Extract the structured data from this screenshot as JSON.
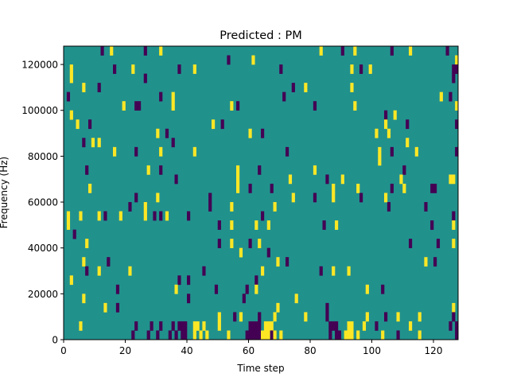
{
  "chart_data": {
    "type": "heatmap",
    "title": "Predicted : PM",
    "xlabel": "Time step",
    "ylabel": "Frequency (Hz)",
    "xlim": [
      0,
      128
    ],
    "ylim": [
      0,
      128000
    ],
    "n_cols": 128,
    "n_rows": 32,
    "row_height_hz": 4000,
    "xticks": [
      0,
      20,
      40,
      60,
      80,
      100,
      120
    ],
    "xtick_labels": [
      "0",
      "20",
      "40",
      "60",
      "80",
      "100",
      "120"
    ],
    "yticks": [
      0,
      20000,
      40000,
      60000,
      80000,
      100000,
      120000
    ],
    "ytick_labels": [
      "0",
      "20000",
      "40000",
      "60000",
      "80000",
      "100000",
      "120000"
    ],
    "background_value": 0,
    "colors": {
      "low": "#440154",
      "mid": "#21918c",
      "high": "#fde725"
    },
    "cells_note": "each cell: [time step, frequency row, value] with -1 low, 1 high",
    "cells": [
      [
        12,
        31,
        -1
      ],
      [
        15,
        31,
        1
      ],
      [
        26,
        31,
        -1
      ],
      [
        31,
        31,
        1
      ],
      [
        83,
        31,
        1
      ],
      [
        90,
        31,
        -1
      ],
      [
        94,
        31,
        1
      ],
      [
        106,
        31,
        -1
      ],
      [
        112,
        31,
        1
      ],
      [
        124,
        31,
        -1
      ],
      [
        53,
        30,
        -1
      ],
      [
        61,
        30,
        1
      ],
      [
        127,
        30,
        1
      ],
      [
        2,
        29,
        1
      ],
      [
        16,
        29,
        -1
      ],
      [
        22,
        29,
        1
      ],
      [
        37,
        29,
        -1
      ],
      [
        42,
        29,
        1
      ],
      [
        70,
        29,
        -1
      ],
      [
        93,
        29,
        1
      ],
      [
        96,
        29,
        -1
      ],
      [
        99,
        29,
        1
      ],
      [
        126,
        29,
        -1
      ],
      [
        127,
        29,
        -1
      ],
      [
        2,
        28,
        1
      ],
      [
        26,
        28,
        -1
      ],
      [
        126,
        28,
        -1
      ],
      [
        6,
        27,
        1
      ],
      [
        11,
        27,
        -1
      ],
      [
        74,
        27,
        -1
      ],
      [
        78,
        27,
        1
      ],
      [
        93,
        27,
        1
      ],
      [
        1,
        26,
        -1
      ],
      [
        31,
        26,
        -1
      ],
      [
        35,
        26,
        1
      ],
      [
        71,
        26,
        -1
      ],
      [
        122,
        26,
        1
      ],
      [
        125,
        26,
        -1
      ],
      [
        19,
        25,
        1
      ],
      [
        23,
        25,
        -1
      ],
      [
        24,
        25,
        -1
      ],
      [
        35,
        25,
        1
      ],
      [
        54,
        25,
        1
      ],
      [
        56,
        25,
        -1
      ],
      [
        81,
        25,
        -1
      ],
      [
        94,
        25,
        1
      ],
      [
        127,
        25,
        1
      ],
      [
        2,
        24,
        1
      ],
      [
        104,
        24,
        -1
      ],
      [
        107,
        24,
        1
      ],
      [
        4,
        23,
        1
      ],
      [
        8,
        23,
        -1
      ],
      [
        48,
        23,
        1
      ],
      [
        51,
        23,
        -1
      ],
      [
        104,
        23,
        1
      ],
      [
        111,
        23,
        -1
      ],
      [
        127,
        23,
        -1
      ],
      [
        30,
        22,
        1
      ],
      [
        33,
        22,
        -1
      ],
      [
        60,
        22,
        1
      ],
      [
        64,
        22,
        -1
      ],
      [
        101,
        22,
        1
      ],
      [
        105,
        22,
        1
      ],
      [
        6,
        21,
        -1
      ],
      [
        9,
        21,
        1
      ],
      [
        11,
        21,
        1
      ],
      [
        35,
        21,
        -1
      ],
      [
        111,
        21,
        1
      ],
      [
        16,
        20,
        1
      ],
      [
        23,
        20,
        -1
      ],
      [
        31,
        20,
        1
      ],
      [
        42,
        20,
        1
      ],
      [
        72,
        20,
        -1
      ],
      [
        102,
        20,
        1
      ],
      [
        106,
        20,
        -1
      ],
      [
        114,
        20,
        1
      ],
      [
        127,
        20,
        -1
      ],
      [
        102,
        19,
        1
      ],
      [
        7,
        18,
        -1
      ],
      [
        27,
        18,
        1
      ],
      [
        31,
        18,
        -1
      ],
      [
        56,
        18,
        1
      ],
      [
        63,
        18,
        -1
      ],
      [
        81,
        18,
        1
      ],
      [
        110,
        18,
        -1
      ],
      [
        36,
        17,
        -1
      ],
      [
        56,
        17,
        1
      ],
      [
        73,
        17,
        1
      ],
      [
        85,
        17,
        -1
      ],
      [
        90,
        17,
        1
      ],
      [
        109,
        17,
        1
      ],
      [
        125,
        17,
        1
      ],
      [
        126,
        17,
        1
      ],
      [
        8,
        16,
        1
      ],
      [
        56,
        16,
        1
      ],
      [
        60,
        16,
        -1
      ],
      [
        67,
        16,
        -1
      ],
      [
        87,
        16,
        1
      ],
      [
        95,
        16,
        1
      ],
      [
        106,
        16,
        -1
      ],
      [
        110,
        16,
        1
      ],
      [
        119,
        16,
        -1
      ],
      [
        120,
        16,
        -1
      ],
      [
        23,
        15,
        -1
      ],
      [
        30,
        15,
        1
      ],
      [
        47,
        15,
        -1
      ],
      [
        74,
        15,
        1
      ],
      [
        81,
        15,
        -1
      ],
      [
        87,
        15,
        1
      ],
      [
        96,
        15,
        -1
      ],
      [
        104,
        15,
        1
      ],
      [
        21,
        14,
        -1
      ],
      [
        26,
        14,
        1
      ],
      [
        47,
        14,
        -1
      ],
      [
        54,
        14,
        1
      ],
      [
        68,
        14,
        1
      ],
      [
        105,
        14,
        -1
      ],
      [
        117,
        14,
        -1
      ],
      [
        1,
        13,
        1
      ],
      [
        5,
        13,
        1
      ],
      [
        11,
        13,
        1
      ],
      [
        13,
        13,
        -1
      ],
      [
        18,
        13,
        1
      ],
      [
        26,
        13,
        1
      ],
      [
        29,
        13,
        -1
      ],
      [
        31,
        13,
        -1
      ],
      [
        33,
        13,
        1
      ],
      [
        40,
        13,
        -1
      ],
      [
        64,
        13,
        -1
      ],
      [
        126,
        13,
        -1
      ],
      [
        1,
        12,
        1
      ],
      [
        50,
        12,
        -1
      ],
      [
        54,
        12,
        1
      ],
      [
        62,
        12,
        1
      ],
      [
        66,
        12,
        1
      ],
      [
        84,
        12,
        -1
      ],
      [
        88,
        12,
        1
      ],
      [
        119,
        12,
        -1
      ],
      [
        126,
        12,
        1
      ],
      [
        3,
        11,
        -1
      ],
      [
        7,
        10,
        1
      ],
      [
        50,
        10,
        -1
      ],
      [
        54,
        10,
        1
      ],
      [
        60,
        10,
        -1
      ],
      [
        63,
        10,
        1
      ],
      [
        112,
        10,
        -1
      ],
      [
        121,
        10,
        -1
      ],
      [
        126,
        10,
        1
      ],
      [
        57,
        9,
        1
      ],
      [
        66,
        9,
        -1
      ],
      [
        6,
        8,
        1
      ],
      [
        14,
        8,
        -1
      ],
      [
        69,
        8,
        1
      ],
      [
        72,
        8,
        -1
      ],
      [
        117,
        8,
        1
      ],
      [
        120,
        8,
        -1
      ],
      [
        7,
        7,
        -1
      ],
      [
        11,
        7,
        1
      ],
      [
        21,
        7,
        1
      ],
      [
        45,
        7,
        -1
      ],
      [
        64,
        7,
        1
      ],
      [
        83,
        7,
        -1
      ],
      [
        87,
        7,
        1
      ],
      [
        92,
        7,
        1
      ],
      [
        2,
        6,
        1
      ],
      [
        37,
        6,
        -1
      ],
      [
        40,
        6,
        -1
      ],
      [
        62,
        6,
        -1
      ],
      [
        17,
        5,
        -1
      ],
      [
        36,
        5,
        1
      ],
      [
        49,
        5,
        -1
      ],
      [
        59,
        5,
        -1
      ],
      [
        62,
        5,
        1
      ],
      [
        98,
        5,
        1
      ],
      [
        103,
        5,
        -1
      ],
      [
        6,
        4,
        1
      ],
      [
        40,
        4,
        -1
      ],
      [
        58,
        4,
        -1
      ],
      [
        75,
        4,
        1
      ],
      [
        13,
        3,
        1
      ],
      [
        17,
        3,
        -1
      ],
      [
        69,
        3,
        1
      ],
      [
        85,
        3,
        -1
      ],
      [
        126,
        3,
        1
      ],
      [
        50,
        2,
        1
      ],
      [
        55,
        2,
        -1
      ],
      [
        57,
        2,
        1
      ],
      [
        63,
        2,
        -1
      ],
      [
        68,
        2,
        1
      ],
      [
        78,
        2,
        1
      ],
      [
        85,
        2,
        -1
      ],
      [
        98,
        2,
        1
      ],
      [
        104,
        2,
        -1
      ],
      [
        108,
        2,
        1
      ],
      [
        115,
        2,
        1
      ],
      [
        126,
        2,
        -1
      ],
      [
        5,
        1,
        1
      ],
      [
        23,
        1,
        -1
      ],
      [
        28,
        1,
        -1
      ],
      [
        31,
        1,
        -1
      ],
      [
        35,
        1,
        -1
      ],
      [
        37,
        1,
        -1
      ],
      [
        38,
        1,
        -1
      ],
      [
        39,
        1,
        -1
      ],
      [
        42,
        1,
        1
      ],
      [
        43,
        1,
        1
      ],
      [
        45,
        1,
        1
      ],
      [
        50,
        1,
        1
      ],
      [
        60,
        1,
        -1
      ],
      [
        61,
        1,
        -1
      ],
      [
        62,
        1,
        -1
      ],
      [
        63,
        1,
        -1
      ],
      [
        65,
        1,
        1
      ],
      [
        66,
        1,
        1
      ],
      [
        67,
        1,
        1
      ],
      [
        86,
        1,
        -1
      ],
      [
        87,
        1,
        -1
      ],
      [
        88,
        1,
        -1
      ],
      [
        92,
        1,
        1
      ],
      [
        93,
        1,
        1
      ],
      [
        97,
        1,
        1
      ],
      [
        101,
        1,
        -1
      ],
      [
        112,
        1,
        1
      ],
      [
        125,
        1,
        -1
      ],
      [
        127,
        1,
        -1
      ],
      [
        22,
        0,
        -1
      ],
      [
        27,
        0,
        -1
      ],
      [
        30,
        0,
        -1
      ],
      [
        34,
        0,
        -1
      ],
      [
        36,
        0,
        -1
      ],
      [
        38,
        0,
        -1
      ],
      [
        39,
        0,
        -1
      ],
      [
        42,
        0,
        1
      ],
      [
        44,
        0,
        1
      ],
      [
        46,
        0,
        1
      ],
      [
        53,
        0,
        1
      ],
      [
        59,
        0,
        -1
      ],
      [
        60,
        0,
        -1
      ],
      [
        61,
        0,
        -1
      ],
      [
        62,
        0,
        -1
      ],
      [
        63,
        0,
        -1
      ],
      [
        64,
        0,
        1
      ],
      [
        65,
        0,
        1
      ],
      [
        66,
        0,
        1
      ],
      [
        67,
        0,
        -1
      ],
      [
        68,
        0,
        1
      ],
      [
        70,
        0,
        1
      ],
      [
        86,
        0,
        -1
      ],
      [
        88,
        0,
        -1
      ],
      [
        89,
        0,
        -1
      ],
      [
        91,
        0,
        1
      ],
      [
        92,
        0,
        1
      ],
      [
        93,
        0,
        1
      ],
      [
        95,
        0,
        1
      ],
      [
        103,
        0,
        1
      ],
      [
        108,
        0,
        -1
      ],
      [
        115,
        0,
        1
      ],
      [
        127,
        0,
        -1
      ]
    ]
  }
}
